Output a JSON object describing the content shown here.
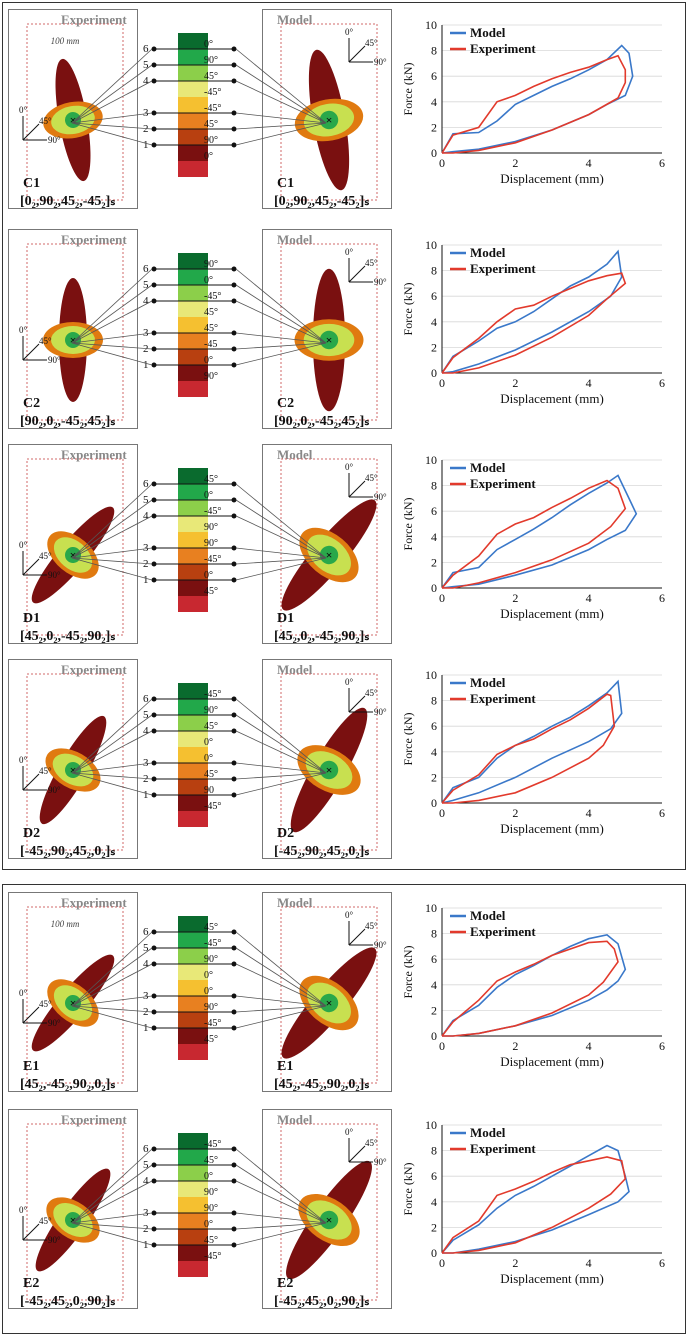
{
  "labels": {
    "experiment": "Experiment",
    "model": "Model",
    "width_note": "100 mm",
    "xlabel": "Displacement (mm)",
    "ylabel": "Force (kN)",
    "axis_angles": {
      "zero": "0°",
      "fortyfive": "45°",
      "ninety": "90°"
    },
    "legend_model": "Model",
    "legend_experiment": "Experiment"
  },
  "colors": {
    "model": "#3a78c9",
    "experiment": "#e23a2c",
    "dark_red": "#7a1010",
    "orange": "#e07a10",
    "yellow_green": "#c8e050",
    "green": "#2aa84a"
  },
  "rows": [
    {
      "code": "C1",
      "ply": "[0₂,90₂,45₂,-45₂]ₛ",
      "angles": [
        "0°",
        "90°",
        "45°",
        "-45°",
        "-45°",
        "45°",
        "90°",
        "0°"
      ]
    },
    {
      "code": "C2",
      "ply": "[90₂,0₂,-45₂,45₂]ₛ",
      "angles": [
        "90°",
        "0°",
        "-45°",
        "45°",
        "45°",
        "-45",
        "0°",
        "90°"
      ]
    },
    {
      "code": "D1",
      "ply": "[45₂,0₂,-45₂,90₂]ₛ",
      "angles": [
        "45°",
        "0°",
        "-45°",
        "90°",
        "90°",
        "-45°",
        "0°",
        "45°"
      ]
    },
    {
      "code": "D2",
      "ply": "[-45₂,90₂,45₂,0₂]ₛ",
      "angles": [
        "-45°",
        "90°",
        "45°",
        "0°",
        "0°",
        "45°",
        "90",
        "-45°"
      ]
    },
    {
      "code": "E1",
      "ply": "[45₂,-45₂,90₂,0₂]ₛ",
      "angles": [
        "45°",
        "-45°",
        "90°",
        "0°",
        "0°",
        "90°",
        "-45°",
        "45°"
      ]
    },
    {
      "code": "E2",
      "ply": "[-45₂,45₂,0₂,90₂]ₛ",
      "angles": [
        "-45°",
        "45°",
        "0°",
        "90°",
        "90°",
        "0°",
        "45°",
        "-45°"
      ]
    }
  ],
  "layer_numbers": [
    "6",
    "5",
    "4",
    "3",
    "2",
    "1"
  ],
  "chart_data": [
    {
      "type": "line",
      "xlim": [
        0,
        6
      ],
      "ylim": [
        0,
        10
      ],
      "xticks": [
        "0",
        "2",
        "4",
        "6"
      ],
      "yticks": [
        "0",
        "2",
        "4",
        "6",
        "8",
        "10"
      ],
      "xlabel": "Displacement (mm)",
      "ylabel": "Force (kN)",
      "series": [
        {
          "name": "Model",
          "x": [
            0,
            0.3,
            1,
            1.5,
            2,
            2.5,
            3,
            3.5,
            4,
            4.5,
            4.9,
            5.1,
            5.2,
            5.0,
            4.5,
            4,
            3,
            2,
            1,
            0.3,
            0
          ],
          "y": [
            0,
            1.5,
            1.6,
            2.5,
            3.8,
            4.5,
            5.2,
            5.8,
            6.5,
            7.3,
            8.4,
            7.8,
            6.0,
            4.5,
            3.8,
            3.0,
            1.8,
            0.9,
            0.3,
            0.1,
            0
          ]
        },
        {
          "name": "Experiment",
          "x": [
            0,
            0.3,
            1,
            1.5,
            2,
            2.5,
            3,
            3.5,
            4,
            4.5,
            4.8,
            5.0,
            5.0,
            4.8,
            4,
            3,
            2,
            1,
            0.3,
            0
          ],
          "y": [
            0,
            1.4,
            2.0,
            4.0,
            4.5,
            5.2,
            5.8,
            6.3,
            6.7,
            7.3,
            7.6,
            6.5,
            5.5,
            4.3,
            3.0,
            1.8,
            0.8,
            0.2,
            0,
            0
          ]
        }
      ]
    },
    {
      "type": "line",
      "xlim": [
        0,
        6
      ],
      "ylim": [
        0,
        10
      ],
      "xticks": [
        "0",
        "2",
        "4",
        "6"
      ],
      "yticks": [
        "0",
        "2",
        "4",
        "6",
        "8",
        "10"
      ],
      "xlabel": "Displacement (mm)",
      "ylabel": "Force (kN)",
      "series": [
        {
          "name": "Model",
          "x": [
            0,
            0.3,
            1,
            1.5,
            2,
            2.5,
            3,
            3.5,
            4,
            4.5,
            4.8,
            4.9,
            4.6,
            4,
            3,
            2,
            1,
            0.3,
            0
          ],
          "y": [
            0,
            1.3,
            2.5,
            3.5,
            4.0,
            4.8,
            5.8,
            6.8,
            7.5,
            8.5,
            9.5,
            7.5,
            6.0,
            4.8,
            3.2,
            1.8,
            0.7,
            0.1,
            0
          ],
          "_": ""
        },
        {
          "name": "Experiment",
          "x": [
            0,
            0.3,
            1,
            1.5,
            2,
            2.5,
            3,
            3.5,
            4,
            4.5,
            4.9,
            5.0,
            4.5,
            4,
            3,
            2,
            1,
            0.3,
            0
          ],
          "y": [
            0,
            1.2,
            2.7,
            4.0,
            5.0,
            5.3,
            6.0,
            6.6,
            7.2,
            7.6,
            7.8,
            7.0,
            5.8,
            4.5,
            2.8,
            1.4,
            0.4,
            0,
            0
          ]
        }
      ]
    },
    {
      "type": "line",
      "xlim": [
        0,
        6
      ],
      "ylim": [
        0,
        10
      ],
      "xticks": [
        "0",
        "2",
        "4",
        "6"
      ],
      "yticks": [
        "0",
        "2",
        "4",
        "6",
        "8",
        "10"
      ],
      "xlabel": "Displacement (mm)",
      "ylabel": "Force (kN)",
      "series": [
        {
          "name": "Model",
          "x": [
            0,
            0.3,
            1,
            1.5,
            2,
            2.5,
            3,
            3.5,
            4,
            4.5,
            4.8,
            5.1,
            5.3,
            5.0,
            4.5,
            4,
            3,
            2,
            1,
            0.3,
            0
          ],
          "y": [
            0,
            1.2,
            1.6,
            3.0,
            3.8,
            4.6,
            5.5,
            6.5,
            7.4,
            8.2,
            8.8,
            7.0,
            5.8,
            4.5,
            3.8,
            3.0,
            1.8,
            1.0,
            0.3,
            0.1,
            0
          ]
        },
        {
          "name": "Experiment",
          "x": [
            0,
            0.3,
            1,
            1.5,
            2,
            2.5,
            3,
            3.5,
            4,
            4.5,
            4.8,
            5.0,
            4.6,
            4,
            3,
            2,
            1,
            0.3,
            0
          ],
          "y": [
            0,
            1.0,
            2.5,
            4.2,
            5.0,
            5.5,
            6.3,
            7.0,
            7.8,
            8.4,
            7.8,
            6.2,
            4.8,
            3.5,
            2.2,
            1.2,
            0.4,
            0,
            0
          ]
        }
      ]
    },
    {
      "type": "line",
      "xlim": [
        0,
        6
      ],
      "ylim": [
        0,
        10
      ],
      "xticks": [
        "0",
        "2",
        "4",
        "6"
      ],
      "yticks": [
        "0",
        "2",
        "4",
        "6",
        "8",
        "10"
      ],
      "xlabel": "Displacement (mm)",
      "ylabel": "Force (kN)",
      "series": [
        {
          "name": "Model",
          "x": [
            0,
            0.3,
            1,
            1.5,
            2,
            2.5,
            3,
            3.5,
            4,
            4.5,
            4.8,
            4.9,
            4.6,
            4,
            3,
            2,
            1,
            0.3,
            0
          ],
          "y": [
            0,
            1.2,
            2.0,
            3.5,
            4.5,
            5.2,
            6.0,
            6.7,
            7.6,
            8.6,
            9.5,
            7.0,
            5.8,
            4.8,
            3.5,
            2.0,
            0.8,
            0.2,
            0
          ]
        },
        {
          "name": "Experiment",
          "x": [
            0,
            0.3,
            1,
            1.5,
            2,
            2.5,
            3,
            3.5,
            4,
            4.5,
            4.6,
            4.7,
            4.4,
            4,
            3,
            2,
            1,
            0.3,
            0
          ],
          "y": [
            0,
            1.0,
            2.2,
            3.8,
            4.5,
            5.0,
            5.8,
            6.5,
            7.4,
            8.5,
            8.4,
            6.0,
            4.5,
            3.5,
            2.0,
            0.8,
            0.2,
            0,
            0
          ]
        }
      ]
    },
    {
      "type": "line",
      "xlim": [
        0,
        6
      ],
      "ylim": [
        0,
        10
      ],
      "xticks": [
        "0",
        "2",
        "4",
        "6"
      ],
      "yticks": [
        "0",
        "2",
        "4",
        "6",
        "8",
        "10"
      ],
      "xlabel": "Displacement (mm)",
      "ylabel": "Force (kN)",
      "series": [
        {
          "name": "Model",
          "x": [
            0,
            0.3,
            1,
            1.5,
            2,
            2.5,
            3,
            3.5,
            4,
            4.5,
            4.8,
            5.0,
            4.8,
            4.5,
            4,
            3,
            2,
            1,
            0.3,
            0
          ],
          "y": [
            0,
            1.2,
            2.4,
            3.8,
            4.8,
            5.5,
            6.3,
            7.0,
            7.6,
            7.9,
            7.2,
            5.2,
            4.3,
            3.6,
            2.8,
            1.6,
            0.8,
            0.2,
            0,
            0
          ]
        },
        {
          "name": "Experiment",
          "x": [
            0,
            0.3,
            1,
            1.5,
            2,
            2.5,
            3,
            3.5,
            4,
            4.5,
            4.7,
            4.8,
            4.4,
            4,
            3,
            2,
            1,
            0.3,
            0
          ],
          "y": [
            0,
            1.1,
            2.8,
            4.3,
            5.0,
            5.6,
            6.3,
            6.8,
            7.3,
            7.4,
            6.8,
            5.8,
            4.2,
            3.2,
            1.8,
            0.8,
            0.2,
            0,
            0
          ]
        }
      ]
    },
    {
      "type": "line",
      "xlim": [
        0,
        6
      ],
      "ylim": [
        0,
        10
      ],
      "xticks": [
        "0",
        "2",
        "4",
        "6"
      ],
      "yticks": [
        "0",
        "2",
        "4",
        "6",
        "8",
        "10"
      ],
      "xlabel": "Displacement (mm)",
      "ylabel": "Force (kN)",
      "series": [
        {
          "name": "Model",
          "x": [
            0,
            0.3,
            1,
            1.5,
            2,
            2.5,
            3,
            3.5,
            4,
            4.5,
            4.8,
            5.0,
            5.1,
            4.8,
            4,
            3,
            2,
            1,
            0.3,
            0
          ],
          "y": [
            0,
            1.0,
            2.2,
            3.5,
            4.5,
            5.2,
            6.0,
            6.8,
            7.6,
            8.4,
            8.0,
            6.0,
            4.8,
            4.0,
            3.0,
            1.8,
            0.9,
            0.3,
            0,
            0
          ]
        },
        {
          "name": "Experiment",
          "x": [
            0,
            0.3,
            1,
            1.5,
            2,
            2.5,
            3,
            3.5,
            4,
            4.5,
            4.9,
            5.0,
            4.6,
            4,
            3,
            2,
            1,
            0.3,
            0
          ],
          "y": [
            0,
            1.2,
            2.5,
            4.5,
            5.0,
            5.6,
            6.3,
            6.9,
            7.2,
            7.5,
            7.2,
            5.8,
            4.6,
            3.5,
            2.0,
            0.8,
            0.2,
            0,
            0
          ]
        }
      ]
    }
  ]
}
